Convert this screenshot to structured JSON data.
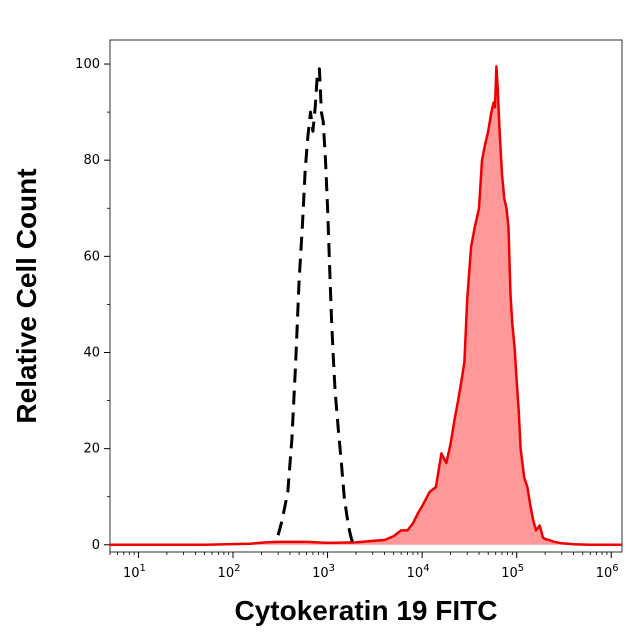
{
  "chart_data": {
    "type": "area",
    "title": "",
    "xlabel": "Cytokeratin 19 FITC",
    "ylabel": "Relative Cell Count",
    "x_scale": "log",
    "xlim": [
      5,
      1300000
    ],
    "ylim": [
      -1.5,
      105
    ],
    "x_ticks": [
      {
        "value": 10,
        "base": "10",
        "exp": "1"
      },
      {
        "value": 100,
        "base": "10",
        "exp": "2"
      },
      {
        "value": 1000,
        "base": "10",
        "exp": "3"
      },
      {
        "value": 10000,
        "base": "10",
        "exp": "4"
      },
      {
        "value": 100000,
        "base": "10",
        "exp": "5"
      },
      {
        "value": 1000000,
        "base": "10",
        "exp": "6"
      }
    ],
    "y_ticks": [
      0,
      20,
      40,
      60,
      80,
      100
    ],
    "grid": false,
    "legend": "none",
    "colors": {
      "filled_line": "#ee0000",
      "filled_area": "#ff9999",
      "dashed_line": "#000000"
    },
    "series": [
      {
        "style": "filled",
        "x": [
          5,
          50,
          150,
          220,
          300,
          600,
          1000,
          2000,
          3000,
          4000,
          5000,
          6000,
          7000,
          8000,
          9000,
          10000,
          12000,
          14000,
          16000,
          18000,
          20000,
          22000,
          24000,
          26000,
          28000,
          30000,
          33000,
          36000,
          40000,
          43000,
          46000,
          50000,
          54000,
          57000,
          59000,
          61000,
          63000,
          66000,
          70000,
          74000,
          78000,
          82000,
          86000,
          90000,
          95000,
          100000,
          105000,
          110000,
          120000,
          130000,
          140000,
          150000,
          160000,
          175000,
          190000,
          200000,
          220000,
          250000,
          300000,
          400000,
          600000,
          1300000
        ],
        "y": [
          0,
          0,
          0.2,
          0.5,
          0.6,
          0.6,
          0.4,
          0.5,
          0.8,
          1.0,
          1.8,
          3.0,
          3.0,
          4.5,
          6.5,
          8.0,
          11.0,
          12.0,
          19.0,
          17.0,
          21.0,
          26.0,
          30.0,
          34.0,
          38.0,
          51.0,
          62.0,
          66.0,
          70.0,
          80.0,
          83.0,
          86.0,
          90.0,
          92.0,
          91.0,
          99.5,
          95.0,
          86.0,
          77.0,
          72.0,
          70.0,
          66.0,
          52.0,
          46.0,
          41.0,
          34.0,
          28.0,
          20.0,
          14.0,
          12.0,
          8.0,
          5.0,
          3.0,
          4.0,
          1.5,
          1.2,
          1.0,
          0.6,
          0.3,
          0.1,
          0,
          0
        ]
      },
      {
        "style": "dashed",
        "x": [
          300,
          330,
          380,
          420,
          460,
          500,
          540,
          580,
          620,
          660,
          700,
          740,
          780,
          820,
          860,
          900,
          950,
          1000,
          1050,
          1100,
          1150,
          1200,
          1300,
          1400,
          1500,
          1600,
          1700,
          1800,
          2000
        ],
        "y": [
          2.0,
          5.0,
          11.0,
          22.0,
          38.0,
          55.0,
          66.0,
          78.0,
          85.0,
          90.0,
          86.0,
          91.0,
          98.0,
          99.0,
          90.0,
          88.0,
          80.0,
          70.0,
          58.0,
          47.0,
          39.0,
          32.0,
          24.0,
          17.0,
          10.0,
          6.0,
          3.0,
          1.0,
          0.2
        ]
      }
    ]
  }
}
